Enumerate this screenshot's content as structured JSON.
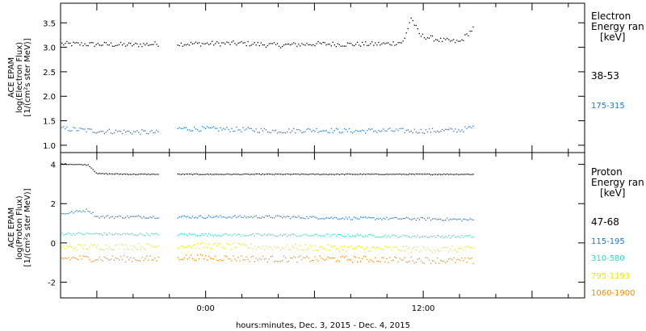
{
  "xaxis": {
    "title": "hours:minutes, Dec.  3, 2015 - Dec.  4, 2015",
    "range_hours": [
      -8.0,
      20.9
    ],
    "tick_labels": [
      {
        "hour": 0,
        "label": "0:00"
      },
      {
        "hour": 12,
        "label": "12:00"
      }
    ],
    "minor_step_hours": 2
  },
  "chart_data": [
    {
      "type": "scatter",
      "panel": "electron",
      "ylabel_lines": [
        "ACE EPAM",
        "log(Electron Flux)",
        "[1/(cm²s ster MeV)]"
      ],
      "ylim": [
        0.85,
        3.9
      ],
      "yticks": [
        1.0,
        1.5,
        2.0,
        2.5,
        3.0,
        3.5
      ],
      "ytick_labels": [
        "1.0",
        "1.5",
        "2.0",
        "2.5",
        "3.0",
        "3.5"
      ],
      "legend_title": [
        "Electron",
        "Energy ran"
      ],
      "legend_unit": "[keV]",
      "data_gap_hours": [
        -2.6,
        -1.6
      ],
      "data_end_hour": 14.8,
      "series": [
        {
          "name": "38-53",
          "color": "#000000",
          "values_by_hour": [
            [
              -8.0,
              3.08
            ],
            [
              -6.0,
              3.07
            ],
            [
              -4.0,
              3.06
            ],
            [
              -2.6,
              3.08
            ],
            [
              -1.6,
              3.08
            ],
            [
              2.0,
              3.09
            ],
            [
              4.0,
              3.05
            ],
            [
              6.0,
              3.08
            ],
            [
              8.0,
              3.07
            ],
            [
              10.0,
              3.08
            ],
            [
              10.9,
              3.12
            ],
            [
              11.3,
              3.62
            ],
            [
              11.8,
              3.25
            ],
            [
              13.0,
              3.15
            ],
            [
              14.0,
              3.12
            ],
            [
              14.8,
              3.42
            ]
          ]
        },
        {
          "name": "175-315",
          "color": "#1f77c4",
          "values_by_hour": [
            [
              -8.0,
              1.35
            ],
            [
              -6.0,
              1.3
            ],
            [
              -4.0,
              1.28
            ],
            [
              -2.6,
              1.27
            ],
            [
              -1.6,
              1.35
            ],
            [
              2.0,
              1.33
            ],
            [
              4.0,
              1.3
            ],
            [
              6.0,
              1.32
            ],
            [
              8.0,
              1.3
            ],
            [
              10.0,
              1.31
            ],
            [
              12.0,
              1.3
            ],
            [
              14.0,
              1.32
            ],
            [
              14.8,
              1.38
            ]
          ]
        }
      ]
    },
    {
      "type": "scatter",
      "panel": "proton",
      "ylabel_lines": [
        "ACE EPAM",
        "log(Proton Flux)",
        "[1/(cm²s ster MeV)]"
      ],
      "ylim": [
        -2.8,
        4.6
      ],
      "yticks": [
        -2,
        0,
        2,
        4
      ],
      "ytick_labels": [
        "-2",
        "0",
        "2",
        "4"
      ],
      "legend_title": [
        "Proton",
        "Energy ran"
      ],
      "legend_unit": "[keV]",
      "data_gap_hours": [
        -2.6,
        -1.6
      ],
      "data_end_hour": 14.8,
      "series": [
        {
          "name": "47-68",
          "color": "#000000",
          "values_by_hour": [
            [
              -8.0,
              4.05
            ],
            [
              -6.5,
              4.0
            ],
            [
              -6.0,
              3.55
            ],
            [
              -4.0,
              3.52
            ],
            [
              -2.6,
              3.52
            ],
            [
              -1.6,
              3.52
            ],
            [
              4.0,
              3.52
            ],
            [
              8.0,
              3.52
            ],
            [
              12.0,
              3.52
            ],
            [
              14.8,
              3.52
            ]
          ]
        },
        {
          "name": "115-195",
          "color": "#1f77c4",
          "values_by_hour": [
            [
              -8.0,
              1.5
            ],
            [
              -6.5,
              1.7
            ],
            [
              -6.0,
              1.35
            ],
            [
              -2.6,
              1.35
            ],
            [
              -1.6,
              1.35
            ],
            [
              4.0,
              1.35
            ],
            [
              8.0,
              1.28
            ],
            [
              12.0,
              1.25
            ],
            [
              14.8,
              1.2
            ]
          ]
        },
        {
          "name": "310-580",
          "color": "#2ed6d0",
          "values_by_hour": [
            [
              -8.0,
              0.5
            ],
            [
              -2.6,
              0.45
            ],
            [
              -1.6,
              0.45
            ],
            [
              4.0,
              0.42
            ],
            [
              8.0,
              0.4
            ],
            [
              12.0,
              0.35
            ],
            [
              14.8,
              0.35
            ]
          ]
        },
        {
          "name": "795-1193",
          "color": "#e8e800",
          "values_by_hour": [
            [
              -8.0,
              -0.2
            ],
            [
              -2.6,
              -0.15
            ],
            [
              -1.6,
              -0.1
            ],
            [
              4.0,
              -0.2
            ],
            [
              8.0,
              -0.25
            ],
            [
              12.0,
              -0.3
            ],
            [
              14.8,
              -0.3
            ]
          ]
        },
        {
          "name": "1060-1900",
          "color": "#f08c00",
          "values_by_hour": [
            [
              -8.0,
              -0.75
            ],
            [
              -2.6,
              -0.8
            ],
            [
              -1.6,
              -0.7
            ],
            [
              4.0,
              -0.8
            ],
            [
              8.0,
              -0.8
            ],
            [
              12.0,
              -0.85
            ],
            [
              14.8,
              -0.9
            ]
          ]
        }
      ]
    }
  ]
}
